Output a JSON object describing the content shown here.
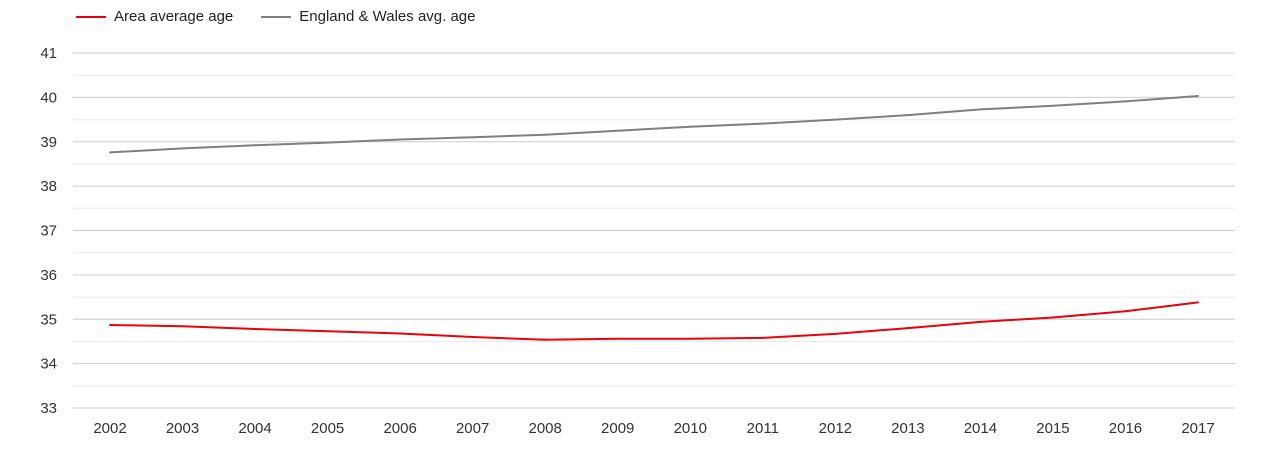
{
  "legend": {
    "items": [
      {
        "label": "Area average age",
        "color": "#e8000b"
      },
      {
        "label": "England & Wales avg. age",
        "color": "#7f7f7f"
      }
    ]
  },
  "chart_data": {
    "type": "line",
    "x": [
      "2002",
      "2003",
      "2004",
      "2005",
      "2006",
      "2007",
      "2008",
      "2009",
      "2010",
      "2011",
      "2012",
      "2013",
      "2014",
      "2015",
      "2016",
      "2017"
    ],
    "series": [
      {
        "name": "Area average age",
        "color": "#e8000b",
        "values": [
          34.87,
          34.84,
          34.78,
          34.73,
          34.68,
          34.6,
          34.54,
          34.56,
          34.56,
          34.58,
          34.67,
          34.8,
          34.94,
          35.04,
          35.18,
          35.38
        ]
      },
      {
        "name": "England & Wales avg. age",
        "color": "#7f7f7f",
        "values": [
          38.76,
          38.85,
          38.92,
          38.98,
          39.05,
          39.1,
          39.16,
          39.25,
          39.34,
          39.41,
          39.5,
          39.6,
          39.73,
          39.81,
          39.91,
          40.03
        ]
      }
    ],
    "yticks": [
      33,
      34,
      35,
      36,
      37,
      38,
      39,
      40,
      41
    ],
    "ylim": [
      33,
      41
    ],
    "grid": true,
    "legend_position": "top-left",
    "title": "",
    "xlabel": "",
    "ylabel": ""
  }
}
